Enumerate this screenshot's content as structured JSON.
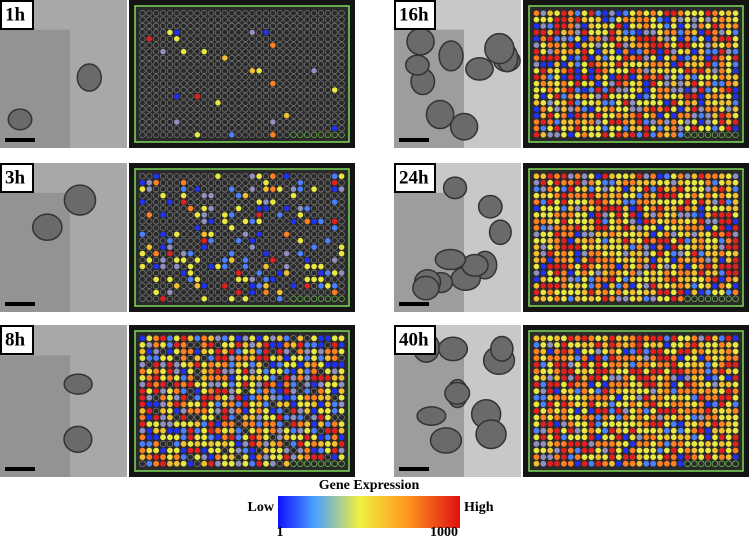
{
  "panels": [
    {
      "label": "1h"
    },
    {
      "label": "3h"
    },
    {
      "label": "8h"
    },
    {
      "label": "16h"
    },
    {
      "label": "24h"
    },
    {
      "label": "40h"
    }
  ],
  "legend": {
    "title": "Gene Expression",
    "low": "Low",
    "high": "High",
    "min": 1,
    "max": 1000
  }
}
